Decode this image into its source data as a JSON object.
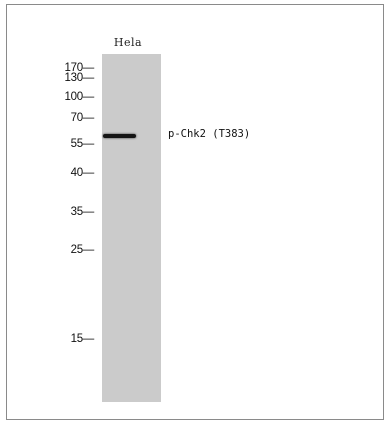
{
  "lane": {
    "label": "Hela"
  },
  "band": {
    "label": "p-Chk2 (T383)"
  },
  "markers": [
    {
      "label": "170—"
    },
    {
      "label": "130—"
    },
    {
      "label": "100—"
    },
    {
      "label": "70—"
    },
    {
      "label": "55—"
    },
    {
      "label": "40—"
    },
    {
      "label": "35—"
    },
    {
      "label": "25—"
    },
    {
      "label": "15—"
    }
  ],
  "colors": {
    "lane": "#cbcbcb",
    "band": "#141414",
    "border": "#8a8a8a"
  }
}
